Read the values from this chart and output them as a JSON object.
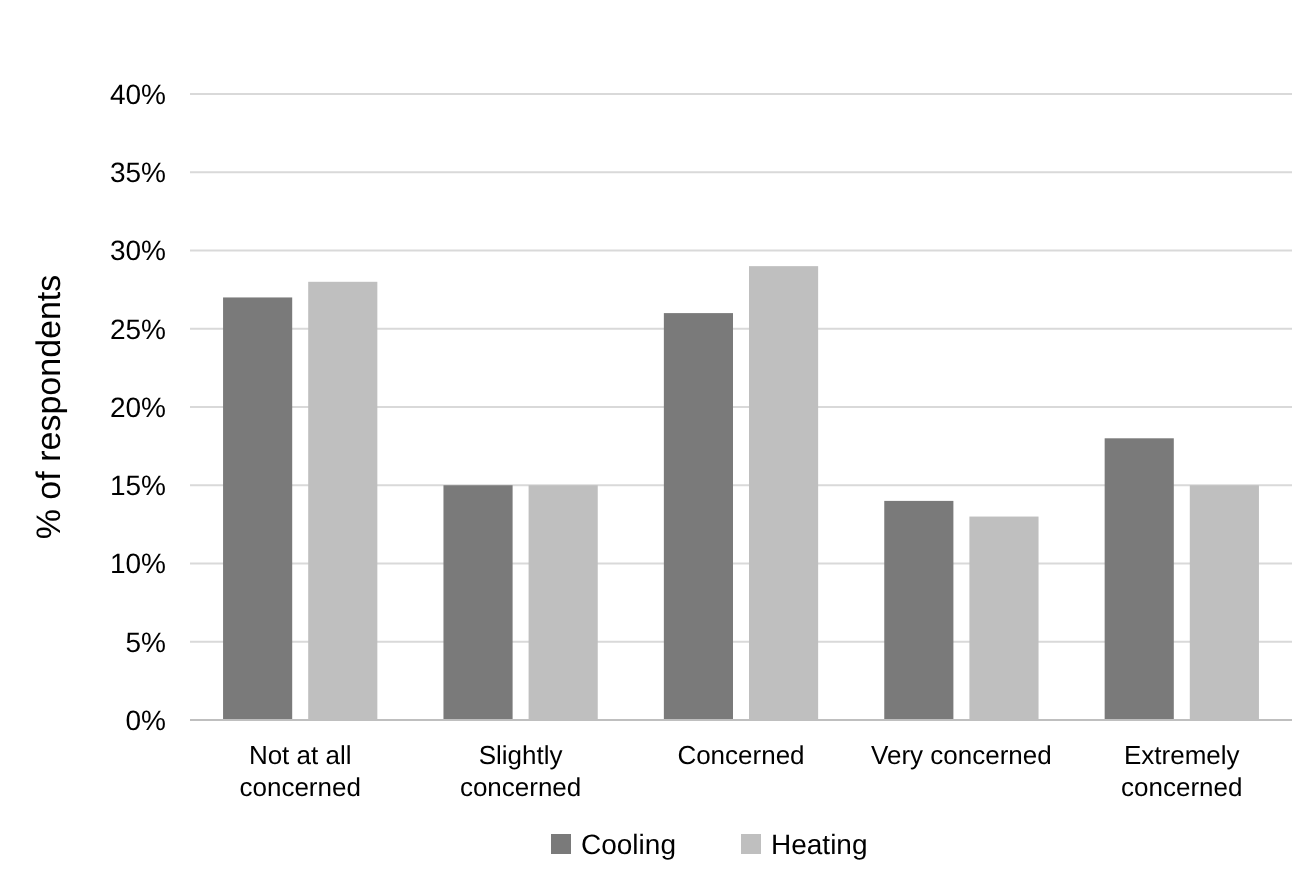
{
  "chart_data": {
    "type": "bar",
    "ylabel": "% of respondents",
    "categories": [
      "Not at all concerned",
      "Slightly concerned",
      "Concerned",
      "Very concerned",
      "Extremely concerned"
    ],
    "series": [
      {
        "name": "Cooling",
        "color": "#7a7a7a",
        "values": [
          27,
          15,
          26,
          14,
          18
        ]
      },
      {
        "name": "Heating",
        "color": "#bfbfbf",
        "values": [
          28,
          15,
          29,
          13,
          15
        ]
      }
    ],
    "ylim": [
      0,
      40
    ],
    "yticks": [
      {
        "value": 0,
        "label": "0%"
      },
      {
        "value": 5,
        "label": "5%"
      },
      {
        "value": 10,
        "label": "10%"
      },
      {
        "value": 15,
        "label": "15%"
      },
      {
        "value": 20,
        "label": "20%"
      },
      {
        "value": 25,
        "label": "25%"
      },
      {
        "value": 30,
        "label": "30%"
      },
      {
        "value": 35,
        "label": "35%"
      },
      {
        "value": 40,
        "label": "40%"
      }
    ],
    "grid": "y",
    "legend": "bottom"
  }
}
